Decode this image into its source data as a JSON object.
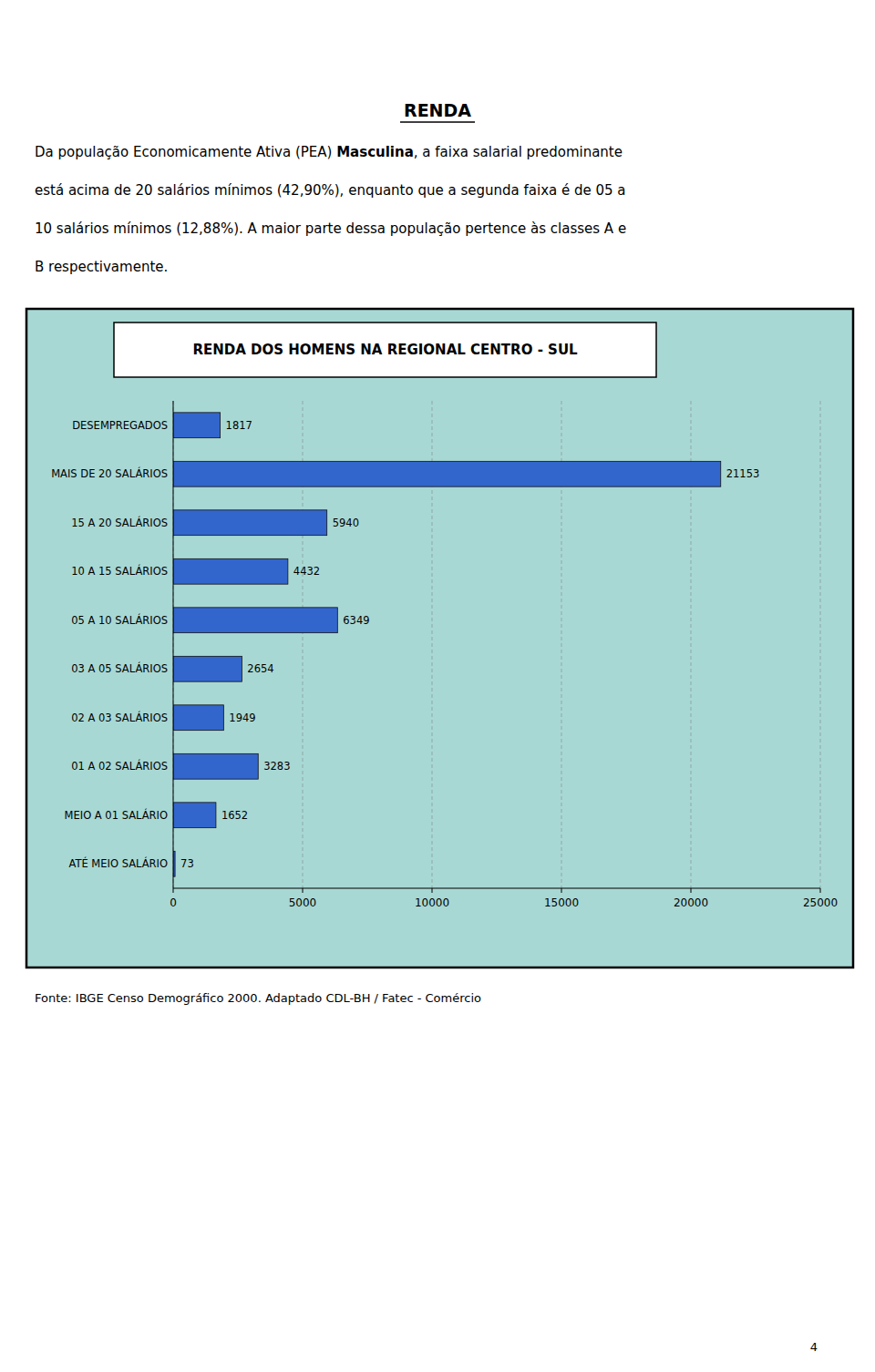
{
  "page_title": "RENDA",
  "page_number": "4",
  "body_lines": [
    [
      "Da população Economicamente Ativa (PEA) ",
      "Masculina",
      ", a faixa salarial predominante"
    ],
    [
      "está acima de 20 salários mínimos (42,90%), enquanto que a segunda faixa é de 05 a"
    ],
    [
      "10 salários mínimos (12,88%). A maior parte dessa população pertence às classes A e"
    ],
    [
      "B respectivamente."
    ]
  ],
  "source": "Fonte: IBGE Censo Demográfico 2000. Adaptado CDL-BH / Fatec - Comércio",
  "chart_data": {
    "type": "bar",
    "orientation": "horizontal",
    "title": "RENDA DOS HOMENS NA REGIONAL CENTRO - SUL",
    "categories": [
      "DESEMPREGADOS",
      "MAIS DE 20 SALÁRIOS",
      "15 A 20 SALÁRIOS",
      "10 A 15 SALÁRIOS",
      "05 A 10 SALÁRIOS",
      "03 A 05 SALÁRIOS",
      "02 A 03 SALÁRIOS",
      "01 A 02 SALÁRIOS",
      "MEIO A 01 SALÁRIO",
      "ATÉ MEIO SALÁRIO"
    ],
    "values": [
      1817,
      21153,
      5940,
      4432,
      6349,
      2654,
      1949,
      3283,
      1652,
      73
    ],
    "color": "#3366CC",
    "xlim": [
      0,
      25000
    ],
    "xticks": [
      0,
      5000,
      10000,
      15000,
      20000,
      25000
    ],
    "grid": true,
    "data_labels": true
  }
}
